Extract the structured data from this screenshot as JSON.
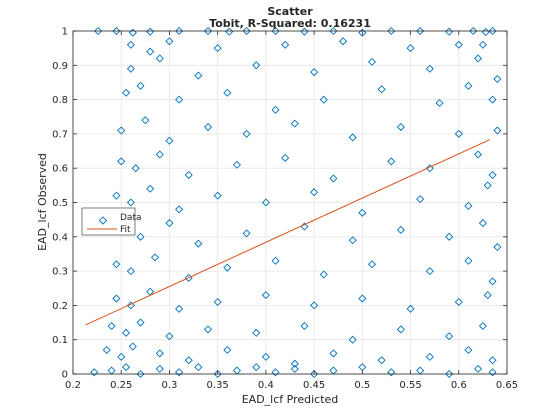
{
  "chart_data": {
    "type": "scatter",
    "title": "Scatter",
    "subtitle": "Tobit, R-Squared: 0.16231",
    "xlabel": "EAD_lcf Predicted",
    "ylabel": "EAD_lcf Observed",
    "xlim": [
      0.2,
      0.65
    ],
    "ylim": [
      0,
      1
    ],
    "xticks": [
      "0.2",
      "0.25",
      "0.3",
      "0.35",
      "0.4",
      "0.45",
      "0.5",
      "0.55",
      "0.6",
      "0.65"
    ],
    "yticks": [
      "0",
      "0.1",
      "0.2",
      "0.3",
      "0.4",
      "0.5",
      "0.6",
      "0.7",
      "0.8",
      "0.9",
      "1"
    ],
    "grid": true,
    "legend_position": "middle-left",
    "series": [
      {
        "name": "Data",
        "marker": "diamond",
        "color": "#0072BD",
        "points": [
          [
            0.226,
            1.0
          ],
          [
            0.245,
            1.0
          ],
          [
            0.262,
            0.995
          ],
          [
            0.28,
            0.998
          ],
          [
            0.31,
            1.0
          ],
          [
            0.34,
            1.0
          ],
          [
            0.362,
            0.998
          ],
          [
            0.38,
            1.0
          ],
          [
            0.41,
            1.0
          ],
          [
            0.44,
            0.998
          ],
          [
            0.47,
            1.0
          ],
          [
            0.5,
            0.995
          ],
          [
            0.53,
            1.0
          ],
          [
            0.56,
            1.0
          ],
          [
            0.59,
            0.998
          ],
          [
            0.615,
            1.0
          ],
          [
            0.628,
            0.997
          ],
          [
            0.635,
            1.0
          ],
          [
            0.26,
            0.96
          ],
          [
            0.28,
            0.94
          ],
          [
            0.3,
            0.97
          ],
          [
            0.35,
            0.95
          ],
          [
            0.42,
            0.96
          ],
          [
            0.48,
            0.97
          ],
          [
            0.55,
            0.95
          ],
          [
            0.6,
            0.96
          ],
          [
            0.625,
            0.96
          ],
          [
            0.26,
            0.89
          ],
          [
            0.29,
            0.92
          ],
          [
            0.33,
            0.87
          ],
          [
            0.39,
            0.9
          ],
          [
            0.45,
            0.88
          ],
          [
            0.51,
            0.91
          ],
          [
            0.57,
            0.89
          ],
          [
            0.62,
            0.92
          ],
          [
            0.64,
            0.86
          ],
          [
            0.255,
            0.82
          ],
          [
            0.27,
            0.84
          ],
          [
            0.31,
            0.8
          ],
          [
            0.36,
            0.82
          ],
          [
            0.41,
            0.77
          ],
          [
            0.46,
            0.8
          ],
          [
            0.52,
            0.83
          ],
          [
            0.58,
            0.79
          ],
          [
            0.61,
            0.84
          ],
          [
            0.635,
            0.8
          ],
          [
            0.25,
            0.71
          ],
          [
            0.275,
            0.74
          ],
          [
            0.3,
            0.68
          ],
          [
            0.34,
            0.72
          ],
          [
            0.38,
            0.7
          ],
          [
            0.43,
            0.73
          ],
          [
            0.49,
            0.69
          ],
          [
            0.54,
            0.72
          ],
          [
            0.6,
            0.7
          ],
          [
            0.64,
            0.71
          ],
          [
            0.25,
            0.62
          ],
          [
            0.265,
            0.6
          ],
          [
            0.29,
            0.64
          ],
          [
            0.32,
            0.58
          ],
          [
            0.37,
            0.61
          ],
          [
            0.42,
            0.63
          ],
          [
            0.47,
            0.57
          ],
          [
            0.53,
            0.62
          ],
          [
            0.57,
            0.6
          ],
          [
            0.62,
            0.64
          ],
          [
            0.635,
            0.58
          ],
          [
            0.245,
            0.52
          ],
          [
            0.26,
            0.5
          ],
          [
            0.28,
            0.54
          ],
          [
            0.31,
            0.48
          ],
          [
            0.35,
            0.52
          ],
          [
            0.4,
            0.5
          ],
          [
            0.45,
            0.53
          ],
          [
            0.5,
            0.47
          ],
          [
            0.56,
            0.51
          ],
          [
            0.61,
            0.49
          ],
          [
            0.63,
            0.55
          ],
          [
            0.25,
            0.42
          ],
          [
            0.27,
            0.4
          ],
          [
            0.3,
            0.44
          ],
          [
            0.33,
            0.38
          ],
          [
            0.38,
            0.41
          ],
          [
            0.44,
            0.43
          ],
          [
            0.49,
            0.39
          ],
          [
            0.54,
            0.42
          ],
          [
            0.59,
            0.4
          ],
          [
            0.625,
            0.44
          ],
          [
            0.64,
            0.37
          ],
          [
            0.245,
            0.32
          ],
          [
            0.26,
            0.3
          ],
          [
            0.285,
            0.34
          ],
          [
            0.32,
            0.28
          ],
          [
            0.36,
            0.31
          ],
          [
            0.41,
            0.33
          ],
          [
            0.46,
            0.29
          ],
          [
            0.51,
            0.32
          ],
          [
            0.57,
            0.3
          ],
          [
            0.61,
            0.33
          ],
          [
            0.635,
            0.27
          ],
          [
            0.245,
            0.22
          ],
          [
            0.26,
            0.2
          ],
          [
            0.28,
            0.24
          ],
          [
            0.31,
            0.19
          ],
          [
            0.35,
            0.21
          ],
          [
            0.4,
            0.23
          ],
          [
            0.45,
            0.2
          ],
          [
            0.5,
            0.22
          ],
          [
            0.55,
            0.19
          ],
          [
            0.6,
            0.21
          ],
          [
            0.63,
            0.23
          ],
          [
            0.24,
            0.14
          ],
          [
            0.255,
            0.12
          ],
          [
            0.27,
            0.15
          ],
          [
            0.3,
            0.11
          ],
          [
            0.34,
            0.13
          ],
          [
            0.39,
            0.12
          ],
          [
            0.44,
            0.14
          ],
          [
            0.49,
            0.1
          ],
          [
            0.54,
            0.13
          ],
          [
            0.59,
            0.11
          ],
          [
            0.625,
            0.14
          ],
          [
            0.235,
            0.07
          ],
          [
            0.25,
            0.05
          ],
          [
            0.262,
            0.08
          ],
          [
            0.29,
            0.06
          ],
          [
            0.32,
            0.04
          ],
          [
            0.36,
            0.07
          ],
          [
            0.4,
            0.05
          ],
          [
            0.43,
            0.03
          ],
          [
            0.47,
            0.06
          ],
          [
            0.52,
            0.04
          ],
          [
            0.57,
            0.05
          ],
          [
            0.61,
            0.07
          ],
          [
            0.635,
            0.04
          ],
          [
            0.222,
            0.005
          ],
          [
            0.24,
            0.01
          ],
          [
            0.255,
            0.02
          ],
          [
            0.27,
            0.0
          ],
          [
            0.29,
            0.015
          ],
          [
            0.31,
            0.005
          ],
          [
            0.33,
            0.02
          ],
          [
            0.35,
            0.0
          ],
          [
            0.37,
            0.01
          ],
          [
            0.39,
            0.02
          ],
          [
            0.41,
            0.005
          ],
          [
            0.43,
            0.015
          ],
          [
            0.45,
            0.0
          ],
          [
            0.47,
            0.01
          ],
          [
            0.5,
            0.02
          ],
          [
            0.53,
            0.005
          ],
          [
            0.56,
            0.01
          ],
          [
            0.59,
            0.0
          ],
          [
            0.62,
            0.015
          ],
          [
            0.635,
            0.005
          ]
        ]
      },
      {
        "name": "Fit",
        "line": true,
        "color": "#D95319",
        "points": [
          [
            0.213,
            0.143
          ],
          [
            0.632,
            0.683
          ]
        ]
      }
    ]
  }
}
